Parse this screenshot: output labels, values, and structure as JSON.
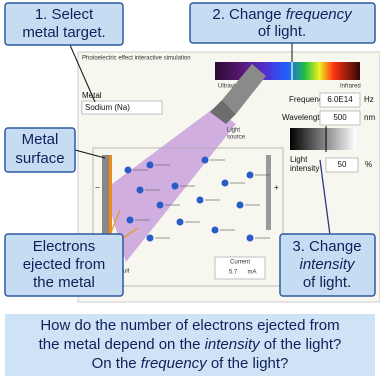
{
  "callouts": {
    "select": [
      "1. Select",
      "metal target."
    ],
    "frequency": {
      "line1": [
        "2. Change ",
        "frequency"
      ],
      "line2": "of light."
    },
    "surface": [
      "Metal",
      "surface"
    ],
    "electrons": [
      "Electrons",
      "ejected from",
      "the metal"
    ],
    "intensity": {
      "line1": "3. Change",
      "line2": "intensity",
      "line3": "of light."
    }
  },
  "simulation": {
    "title": "Photoelectric effect interactive simulation",
    "metal_label": "Metal",
    "metal_value": "Sodium (Na)",
    "spectrum_left": "Ultraviolet",
    "spectrum_right": "Infrared",
    "frequency_label": "Frequency",
    "frequency_value": "6.0E14",
    "frequency_unit": "Hz",
    "wavelength_label": "Wavelength",
    "wavelength_value": "500",
    "wavelength_unit": "nm",
    "light_source": [
      "Light",
      "source"
    ],
    "intensity_label": [
      "Light",
      "intensity"
    ],
    "intensity_value": "50",
    "intensity_unit": "%",
    "minus": "−",
    "plus": "+",
    "circuit": "suit",
    "current_label": "Current",
    "current_value": "5.7",
    "current_unit": "mA"
  },
  "question": {
    "line1": "How do the number of electrons ejected from",
    "line2": [
      "the metal depend on the ",
      "intensity",
      " of the light?"
    ],
    "line3": [
      "On the ",
      "frequency",
      " of the light?"
    ]
  }
}
